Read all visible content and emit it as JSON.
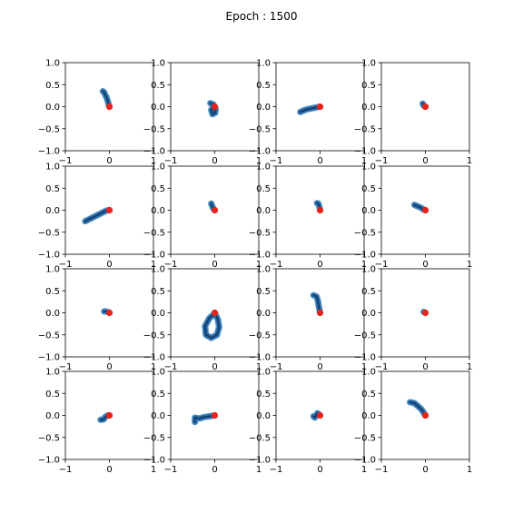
{
  "figure": {
    "title": "Epoch : 1500"
  },
  "chart_data": {
    "type": "scatter",
    "title": "Epoch : 1500",
    "layout": "4x4 grid",
    "xlim": [
      -1,
      1
    ],
    "ylim": [
      -1,
      1
    ],
    "x_ticks": [
      -1,
      0,
      1
    ],
    "x_tick_labels": [
      "−1",
      "0",
      "1"
    ],
    "y_ticks": [
      1.0,
      0.5,
      0.0,
      -0.5,
      -1.0
    ],
    "y_tick_labels": [
      "1.0",
      "0.5",
      "0.0",
      "−0.5",
      "−1.0"
    ],
    "grid": false,
    "colors": {
      "trajectory_light": "#4d8fc4",
      "trajectory_mid": "#2c6aa6",
      "trajectory_dark": "#123f6e",
      "marker": "#e8231c"
    },
    "marker_point": [
      0,
      0
    ],
    "panels": [
      {
        "path": [
          [
            -0.15,
            0.35
          ],
          [
            -0.12,
            0.33
          ],
          [
            -0.1,
            0.28
          ],
          [
            -0.07,
            0.22
          ],
          [
            -0.04,
            0.14
          ],
          [
            -0.02,
            0.06
          ],
          [
            0,
            0
          ]
        ]
      },
      {
        "path": [
          [
            -0.1,
            0.08
          ],
          [
            -0.03,
            0.05
          ],
          [
            0.02,
            -0.05
          ],
          [
            0.01,
            -0.14
          ],
          [
            -0.05,
            -0.17
          ],
          [
            -0.08,
            -0.08
          ],
          [
            -0.03,
            0.02
          ],
          [
            0,
            0
          ]
        ]
      },
      {
        "path": [
          [
            -0.45,
            -0.12
          ],
          [
            -0.38,
            -0.09
          ],
          [
            -0.3,
            -0.06
          ],
          [
            -0.2,
            -0.04
          ],
          [
            -0.1,
            -0.02
          ],
          [
            0,
            0
          ]
        ]
      },
      {
        "path": [
          [
            -0.06,
            0.07
          ],
          [
            -0.05,
            0.04
          ],
          [
            -0.03,
            0.02
          ],
          [
            0,
            0
          ]
        ]
      },
      {
        "path": [
          [
            -0.55,
            -0.25
          ],
          [
            -0.45,
            -0.2
          ],
          [
            -0.35,
            -0.15
          ],
          [
            -0.25,
            -0.1
          ],
          [
            -0.15,
            -0.05
          ],
          [
            -0.07,
            -0.01
          ],
          [
            0,
            0
          ]
        ]
      },
      {
        "path": [
          [
            -0.08,
            0.15
          ],
          [
            -0.06,
            0.1
          ],
          [
            -0.04,
            0.05
          ],
          [
            -0.02,
            0.02
          ],
          [
            0,
            0
          ]
        ]
      },
      {
        "path": [
          [
            -0.07,
            0.16
          ],
          [
            -0.04,
            0.15
          ],
          [
            -0.02,
            0.1
          ],
          [
            -0.01,
            0.05
          ],
          [
            0,
            0
          ]
        ]
      },
      {
        "path": [
          [
            -0.25,
            0.12
          ],
          [
            -0.18,
            0.09
          ],
          [
            -0.11,
            0.06
          ],
          [
            -0.05,
            0.02
          ],
          [
            0,
            0
          ]
        ]
      },
      {
        "path": [
          [
            -0.12,
            0.03
          ],
          [
            -0.08,
            0.03
          ],
          [
            -0.04,
            0.02
          ],
          [
            0,
            0
          ]
        ]
      },
      {
        "path": [
          [
            0,
            0
          ],
          [
            0.07,
            -0.15
          ],
          [
            0.1,
            -0.32
          ],
          [
            0.05,
            -0.5
          ],
          [
            -0.08,
            -0.57
          ],
          [
            -0.2,
            -0.5
          ],
          [
            -0.22,
            -0.3
          ],
          [
            -0.12,
            -0.12
          ],
          [
            -0.04,
            -0.05
          ],
          [
            0,
            0
          ]
        ]
      },
      {
        "path": [
          [
            -0.15,
            0.4
          ],
          [
            -0.08,
            0.37
          ],
          [
            -0.05,
            0.28
          ],
          [
            -0.03,
            0.15
          ],
          [
            0,
            0
          ]
        ]
      },
      {
        "path": [
          [
            -0.04,
            0.02
          ],
          [
            -0.02,
            0.01
          ],
          [
            0,
            0
          ]
        ]
      },
      {
        "path": [
          [
            -0.2,
            -0.1
          ],
          [
            -0.13,
            -0.09
          ],
          [
            -0.1,
            -0.04
          ],
          [
            -0.04,
            0.0
          ],
          [
            0,
            0
          ]
        ]
      },
      {
        "path": [
          [
            -0.45,
            -0.15
          ],
          [
            -0.45,
            -0.05
          ],
          [
            -0.35,
            -0.07
          ],
          [
            -0.25,
            -0.04
          ],
          [
            -0.12,
            -0.02
          ],
          [
            0,
            0
          ]
        ]
      },
      {
        "path": [
          [
            -0.15,
            -0.02
          ],
          [
            -0.12,
            -0.05
          ],
          [
            -0.06,
            0.05
          ],
          [
            0,
            0
          ]
        ]
      },
      {
        "path": [
          [
            -0.35,
            0.3
          ],
          [
            -0.25,
            0.28
          ],
          [
            -0.18,
            0.22
          ],
          [
            -0.1,
            0.15
          ],
          [
            -0.05,
            0.08
          ],
          [
            0,
            0
          ]
        ]
      }
    ]
  }
}
